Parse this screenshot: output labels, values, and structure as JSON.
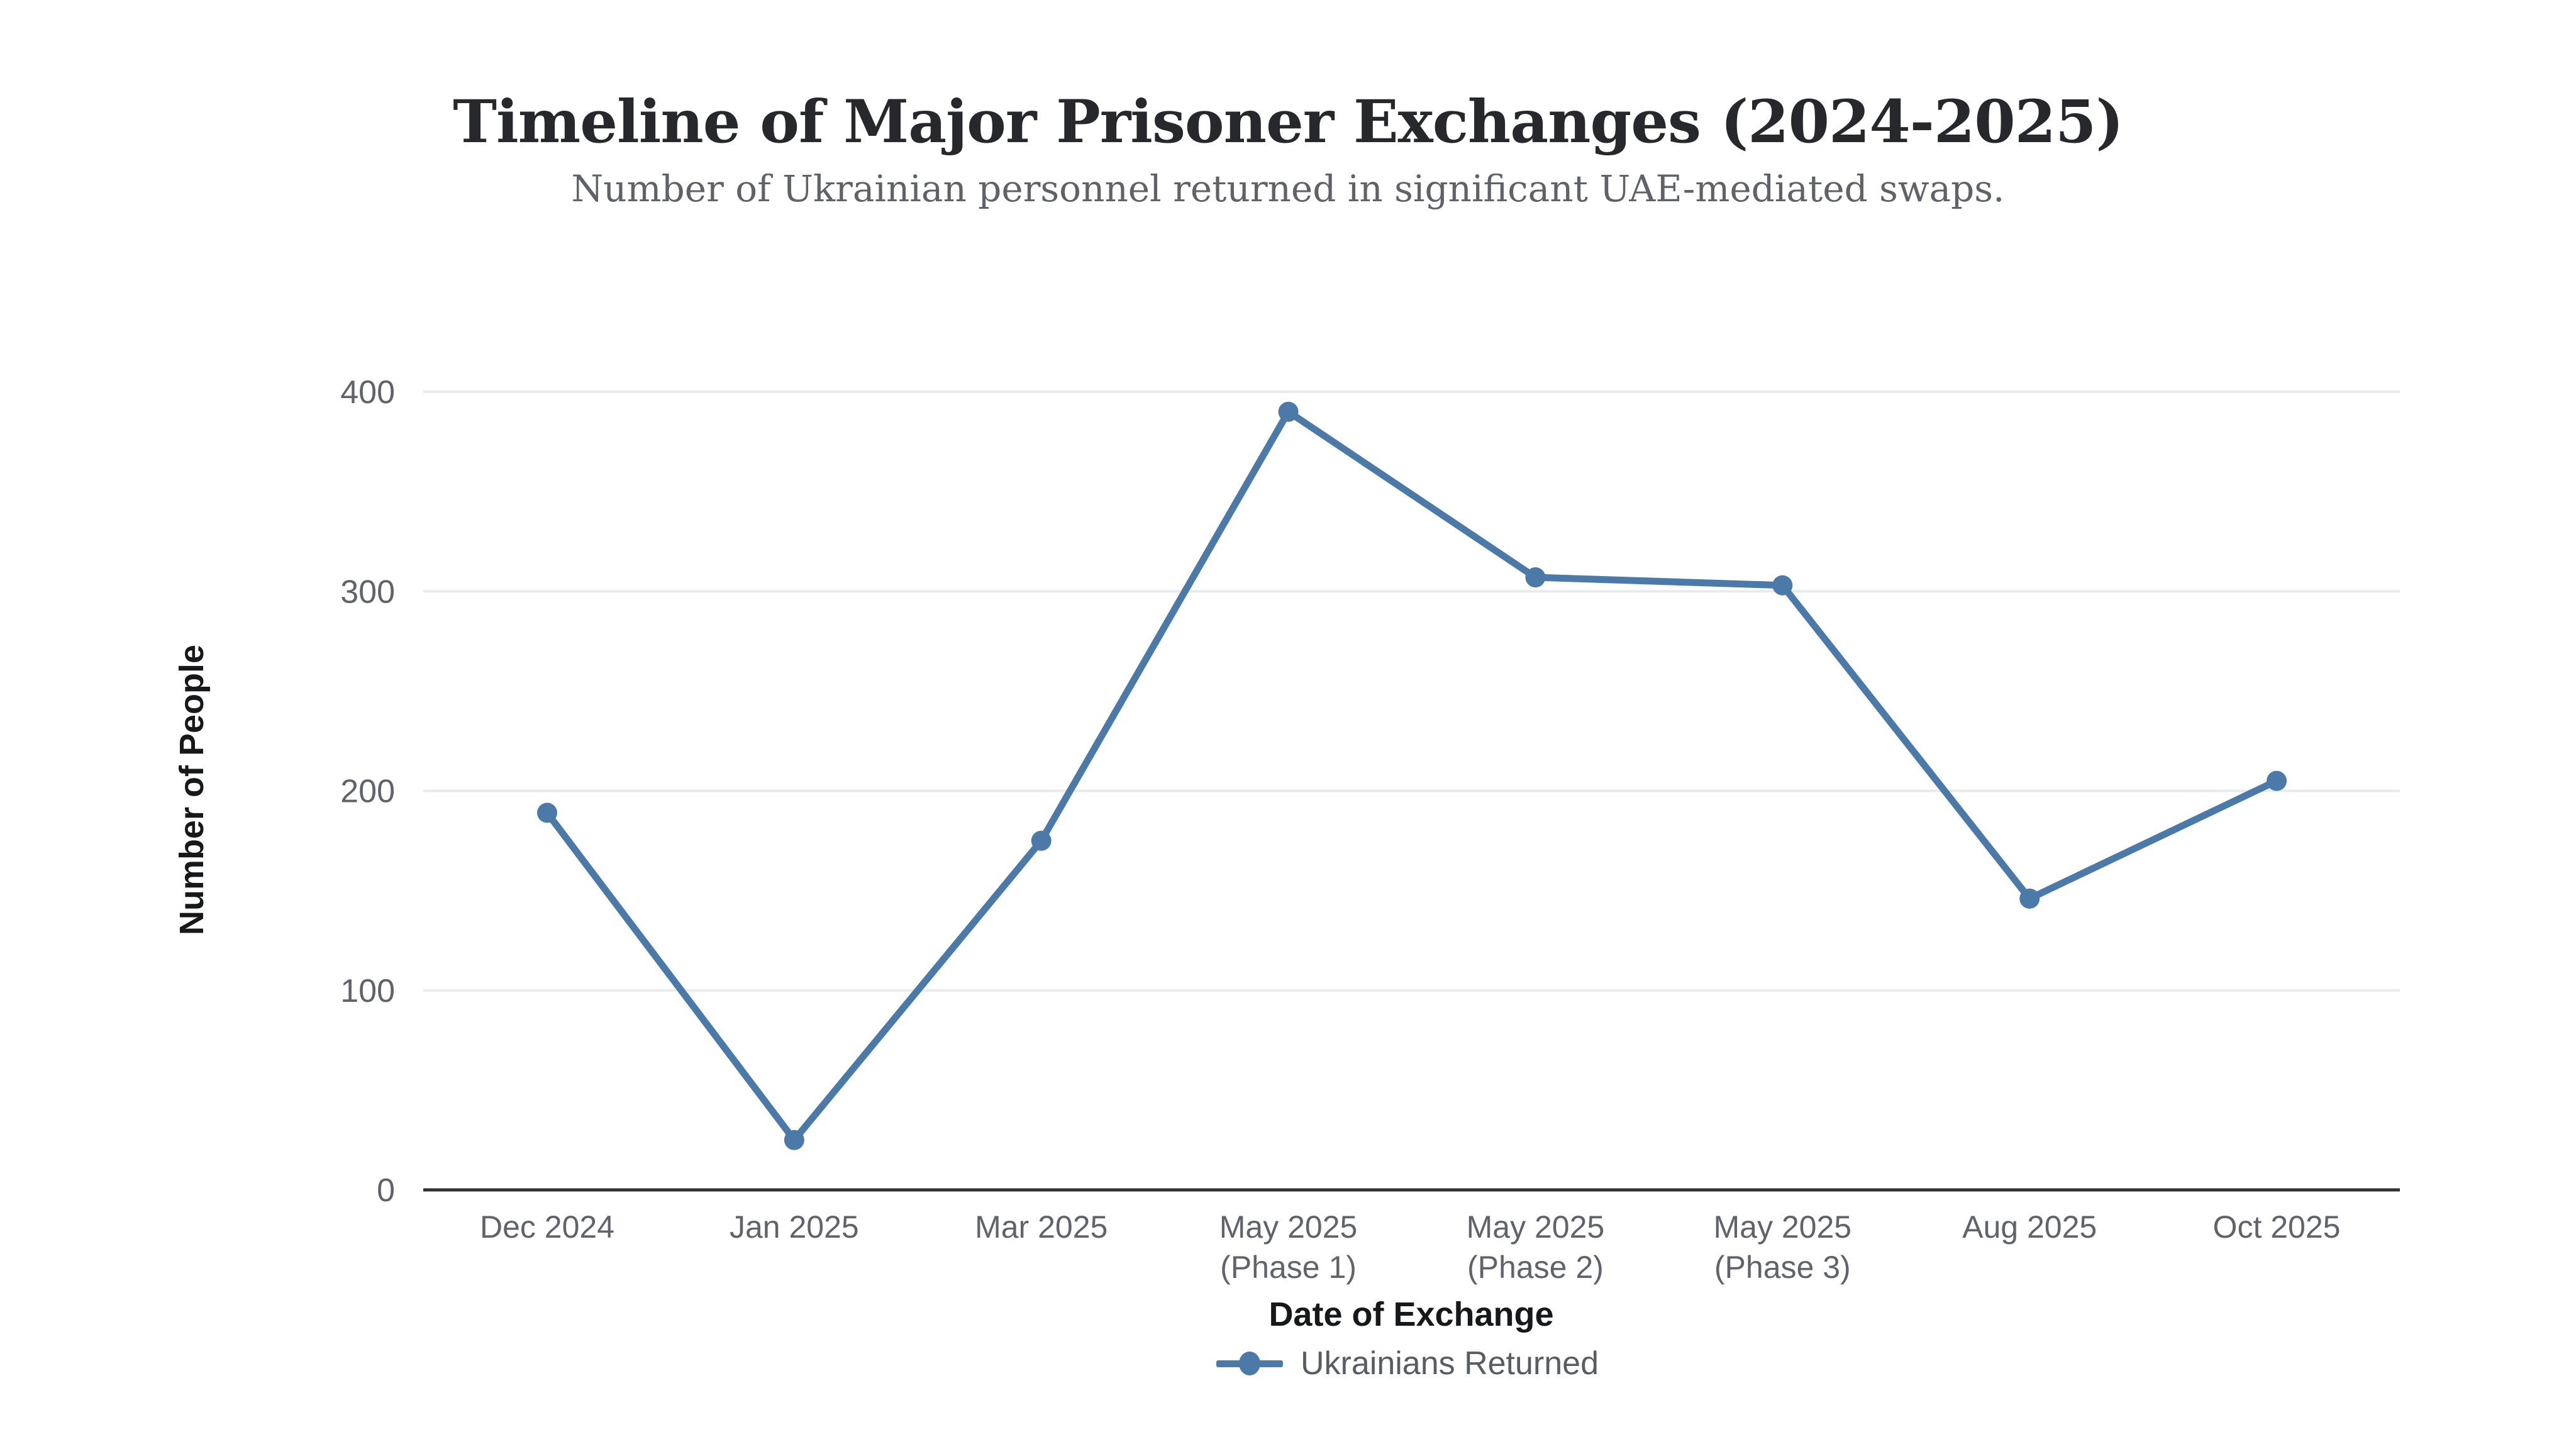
{
  "header": {
    "title": "Timeline of Major Prisoner Exchanges (2024-2025)",
    "subtitle": "Number of Ukrainian personnel returned in significant UAE-mediated swaps."
  },
  "chart_data": {
    "type": "line",
    "title": "Timeline of Major Prisoner Exchanges (2024-2025)",
    "subtitle": "Number of Ukrainian personnel returned in significant UAE-mediated swaps.",
    "categories": [
      "Dec 2024",
      "Jan 2025",
      "Mar 2025",
      "May 2025\n(Phase 1)",
      "May 2025\n(Phase 2)",
      "May 2025\n(Phase 3)",
      "Aug 2025",
      "Oct 2025"
    ],
    "series": [
      {
        "name": "Ukrainians Returned",
        "values": [
          189,
          25,
          175,
          390,
          307,
          303,
          146,
          205
        ]
      }
    ],
    "xlabel": "Date of Exchange",
    "ylabel": "Number of People",
    "ylim": [
      0,
      400
    ],
    "yticks": [
      0,
      100,
      200,
      300,
      400
    ],
    "grid": "horizontal",
    "legend_position": "bottom-center",
    "colors": {
      "line": "#4b79a8",
      "grid": "#e8eaec",
      "axis": "#2f3136",
      "tick_text": "#60646a",
      "title_text": "#26282b",
      "subtitle_text": "#5f6368",
      "axis_label_text": "#17181a",
      "legend_text": "#595d62"
    }
  }
}
